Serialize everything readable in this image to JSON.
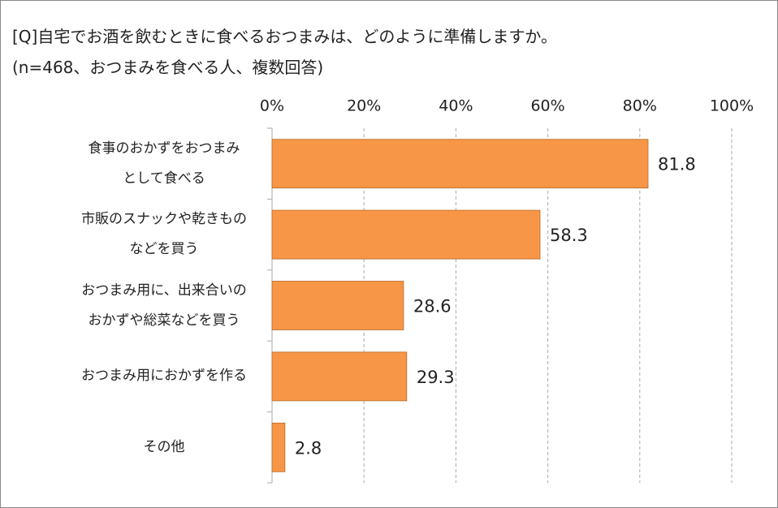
{
  "chart_data": {
    "type": "bar",
    "orientation": "horizontal",
    "title": "[Q]自宅でお酒を飲むときに食べるおつまみは、どのように準備しますか。",
    "subtitle": "(n=468、おつまみを食べる人、複数回答)",
    "categories": [
      "食事のおかずをおつまみ\nとして食べる",
      "市販のスナックや乾きもの\nなどを買う",
      "おつまみ用に、出来合いの\nおかずや総菜などを買う",
      "おつまみ用におかずを作る",
      "その他"
    ],
    "values": [
      81.8,
      58.3,
      28.6,
      29.3,
      2.8
    ],
    "color": "#f79646",
    "xlim": [
      0,
      100
    ],
    "xticks": [
      {
        "value": 0,
        "label": "0%"
      },
      {
        "value": 20,
        "label": "20%"
      },
      {
        "value": 40,
        "label": "40%"
      },
      {
        "value": 60,
        "label": "60%"
      },
      {
        "value": 80,
        "label": "80%"
      },
      {
        "value": 100,
        "label": "100%"
      }
    ],
    "grid": true
  }
}
